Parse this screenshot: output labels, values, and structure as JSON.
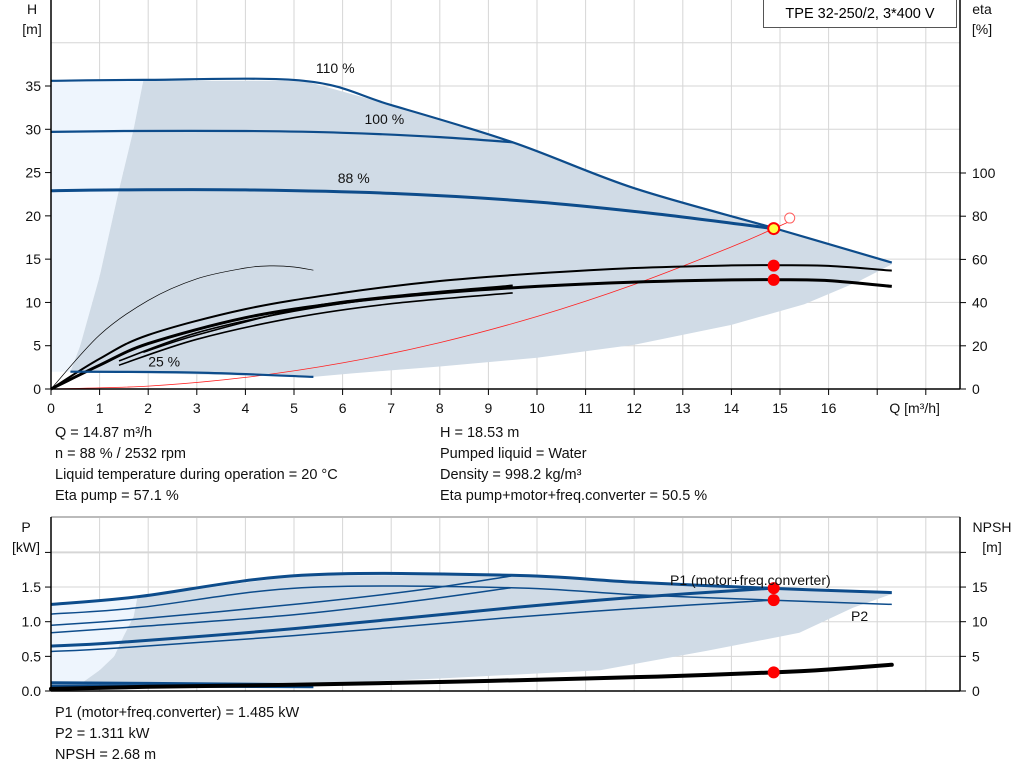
{
  "chart_data": [
    {
      "type": "line",
      "title": "TPE 32-250/2, 3*400 V",
      "ylabel": "H",
      "ylabel_unit": "[m]",
      "y2label": "eta",
      "y2label_unit": "[%]",
      "xlabel": "Q [m³/h]",
      "xlim": [
        0,
        18.7
      ],
      "ylim": [
        0,
        45
      ],
      "y2lim": [
        0,
        180
      ],
      "xticks": [
        "0",
        "1",
        "2",
        "3",
        "4",
        "5",
        "6",
        "7",
        "8",
        "9",
        "10",
        "11",
        "12",
        "13",
        "14",
        "15",
        "16"
      ],
      "yticks": [
        "0",
        "5",
        "10",
        "15",
        "20",
        "25",
        "30",
        "35"
      ],
      "y2ticks": [
        "0",
        "20",
        "40",
        "60",
        "80",
        "100"
      ],
      "grid": true,
      "colors": {
        "curve": "#0d4c8b",
        "envelope": "#d0dbe6",
        "envelope_light": "#eef5fd",
        "system": "#ff2020",
        "operating_point": "#ff0000",
        "duty_fill": "#ffff40"
      },
      "envelope": {
        "upper": [
          [
            1.9,
            35.6
          ],
          [
            5.2,
            35.6
          ],
          [
            7,
            32.8
          ],
          [
            9.5,
            28.5
          ],
          [
            12,
            23.2
          ],
          [
            14.87,
            18.6
          ],
          [
            17.3,
            14.6
          ]
        ],
        "lower": [
          [
            17.3,
            14.4
          ],
          [
            16.6,
            12.4
          ],
          [
            15.5,
            9.8
          ],
          [
            14,
            7.4
          ],
          [
            12,
            5.1
          ],
          [
            10,
            3.6
          ],
          [
            8,
            2.6
          ],
          [
            6.2,
            1.8
          ],
          [
            5.4,
            1.4
          ]
        ],
        "left": [
          [
            0.4,
            2.0
          ],
          [
            0.6,
            5
          ],
          [
            1.0,
            13
          ],
          [
            1.4,
            23
          ],
          [
            1.7,
            30
          ],
          [
            1.9,
            35.6
          ]
        ]
      },
      "head_curves": [
        {
          "name": "110 %",
          "points": [
            [
              0,
              35.6
            ],
            [
              1.9,
              35.7
            ],
            [
              5.2,
              35.6
            ],
            [
              7,
              32.8
            ],
            [
              9.5,
              28.5
            ],
            [
              12,
              23.2
            ],
            [
              14.87,
              18.6
            ],
            [
              17.3,
              14.6
            ]
          ]
        },
        {
          "name": "100 %",
          "points": [
            [
              0,
              29.7
            ],
            [
              1.5,
              29.8
            ],
            [
              4,
              29.8
            ],
            [
              6,
              29.6
            ],
            [
              8,
              29.1
            ],
            [
              9.5,
              28.5
            ]
          ]
        },
        {
          "name": "88 %",
          "points": [
            [
              0,
              22.9
            ],
            [
              1.4,
              23.0
            ],
            [
              4,
              23.0
            ],
            [
              7,
              22.6
            ],
            [
              10,
              21.6
            ],
            [
              12.5,
              20.2
            ],
            [
              14.87,
              18.53
            ]
          ]
        },
        {
          "name": "25 %",
          "points": [
            [
              0.4,
              2.0
            ],
            [
              3,
              1.9
            ],
            [
              5.4,
              1.4
            ]
          ]
        }
      ],
      "eta_curves": [
        {
          "id": "eta-pump",
          "points": [
            [
              0,
              0
            ],
            [
              1,
              14
            ],
            [
              2,
              25
            ],
            [
              4,
              37
            ],
            [
              6,
              44.5
            ],
            [
              8,
              50
            ],
            [
              10,
              53.5
            ],
            [
              12,
              56
            ],
            [
              14,
              57.2
            ],
            [
              15,
              57.3
            ],
            [
              16,
              57
            ],
            [
              17.3,
              54.8
            ]
          ]
        },
        {
          "id": "eta-total",
          "points": [
            [
              0,
              0
            ],
            [
              1,
              11
            ],
            [
              2,
              21
            ],
            [
              4,
              33
            ],
            [
              6,
              40
            ],
            [
              8,
              44.5
            ],
            [
              10,
              47.5
            ],
            [
              12,
              49.5
            ],
            [
              14,
              50.5
            ],
            [
              15,
              50.6
            ],
            [
              16,
              50.2
            ],
            [
              17.3,
              47.5
            ]
          ]
        },
        {
          "id": "eta-pump-100",
          "points": [
            [
              1.4,
              13
            ],
            [
              3,
              26
            ],
            [
              5,
              36
            ],
            [
              7,
              42.5
            ],
            [
              9.5,
              47.5
            ]
          ]
        },
        {
          "id": "eta-total-100",
          "points": [
            [
              1.4,
              11
            ],
            [
              3,
              23
            ],
            [
              5,
              33
            ],
            [
              7,
              39.5
            ],
            [
              9.5,
              44.5
            ]
          ]
        },
        {
          "id": "eta-pump-110",
          "points": [
            [
              1.9,
              17
            ],
            [
              3,
              25
            ],
            [
              5.2,
              37.5
            ],
            [
              7,
              43
            ],
            [
              9.5,
              48
            ]
          ]
        },
        {
          "id": "eta-pump-25",
          "points": [
            [
              0,
              0
            ],
            [
              1,
              25
            ],
            [
              2,
              41
            ],
            [
              3,
              51
            ],
            [
              4,
              56
            ],
            [
              4.5,
              57
            ],
            [
              5,
              56.5
            ],
            [
              5.4,
              55
            ]
          ]
        }
      ],
      "system_curve": {
        "points": [
          [
            0,
            0
          ],
          [
            2,
            0.34
          ],
          [
            4,
            1.34
          ],
          [
            6,
            3.02
          ],
          [
            8,
            5.36
          ],
          [
            10,
            8.38
          ],
          [
            12,
            12.07
          ],
          [
            14,
            16.42
          ],
          [
            14.87,
            18.53
          ],
          [
            15.2,
            19.36
          ]
        ]
      },
      "markers": [
        {
          "label": "duty-point",
          "x": 14.87,
          "y": 18.53,
          "axis": "H"
        },
        {
          "label": "eta-pump-point",
          "x": 14.87,
          "y": 57.1,
          "axis": "eta"
        },
        {
          "label": "eta-total-point",
          "x": 14.87,
          "y": 50.5,
          "axis": "eta"
        }
      ]
    },
    {
      "type": "line",
      "ylabel": "P",
      "ylabel_unit": "[kW]",
      "y2label": "NPSH",
      "y2label_unit": "[m]",
      "xlim": [
        0,
        18.7
      ],
      "ylim": [
        0,
        2.5
      ],
      "y2lim": [
        0,
        25
      ],
      "yticks": [
        "0.0",
        "0.5",
        "1.0",
        "1.5"
      ],
      "y2ticks": [
        "0",
        "5",
        "10",
        "15"
      ],
      "grid": true,
      "envelope": {
        "upper": [
          [
            1.78,
            1.36
          ],
          [
            5.16,
            1.67
          ],
          [
            9.47,
            1.67
          ],
          [
            12,
            1.57
          ],
          [
            14.87,
            1.48
          ],
          [
            17.3,
            1.42
          ]
        ],
        "lower": [
          [
            17.3,
            1.4
          ],
          [
            16.5,
            1.2
          ],
          [
            15.4,
            0.84
          ],
          [
            13.5,
            0.58
          ],
          [
            11.3,
            0.3
          ],
          [
            8,
            0.18
          ],
          [
            5.5,
            0.11
          ],
          [
            1,
            0.12
          ]
        ],
        "left": [
          [
            0.6,
            0.1
          ],
          [
            1.0,
            0.3
          ],
          [
            1.3,
            0.5
          ],
          [
            1.5,
            0.8
          ],
          [
            1.7,
            1.07
          ],
          [
            1.78,
            1.36
          ]
        ]
      },
      "power_curves": [
        {
          "id": "p1-110",
          "points": [
            [
              0,
              1.25
            ],
            [
              1.78,
              1.36
            ],
            [
              5.16,
              1.67
            ],
            [
              9.47,
              1.67
            ],
            [
              12,
              1.57
            ],
            [
              14.87,
              1.48
            ],
            [
              17.3,
              1.42
            ]
          ]
        },
        {
          "id": "p2-110",
          "points": [
            [
              0,
              1.11
            ],
            [
              1.78,
              1.2
            ],
            [
              5.16,
              1.49
            ],
            [
              9.47,
              1.49
            ],
            [
              12,
              1.39
            ],
            [
              14.87,
              1.31
            ],
            [
              17.3,
              1.25
            ]
          ]
        },
        {
          "id": "p1-100",
          "points": [
            [
              0,
              0.95
            ],
            [
              1.65,
              1.03
            ],
            [
              5,
              1.25
            ],
            [
              7.5,
              1.45
            ],
            [
              9.47,
              1.66
            ]
          ]
        },
        {
          "id": "p2-100",
          "points": [
            [
              0,
              0.84
            ],
            [
              2,
              0.94
            ],
            [
              5,
              1.1
            ],
            [
              7.5,
              1.3
            ],
            [
              9.47,
              1.49
            ]
          ]
        },
        {
          "id": "p1-88",
          "points": [
            [
              0,
              0.65
            ],
            [
              1.38,
              0.7
            ],
            [
              5,
              0.9
            ],
            [
              9.47,
              1.2
            ],
            [
              12,
              1.35
            ],
            [
              14.87,
              1.485
            ]
          ]
        },
        {
          "id": "p2-88",
          "points": [
            [
              0,
              0.57
            ],
            [
              1.38,
              0.62
            ],
            [
              5,
              0.8
            ],
            [
              9.47,
              1.06
            ],
            [
              12,
              1.19
            ],
            [
              14.87,
              1.311
            ]
          ]
        },
        {
          "id": "p1-25",
          "points": [
            [
              0,
              0.12
            ],
            [
              2,
              0.11
            ],
            [
              5.4,
              0.09
            ]
          ]
        },
        {
          "id": "p2-25",
          "points": [
            [
              0,
              0.07
            ],
            [
              2,
              0.07
            ],
            [
              5.4,
              0.06
            ]
          ]
        }
      ],
      "npsh_curve": {
        "points": [
          [
            0,
            0.3
          ],
          [
            2,
            0.6
          ],
          [
            5,
            0.9
          ],
          [
            8,
            1.3
          ],
          [
            11,
            1.8
          ],
          [
            13,
            2.2
          ],
          [
            14.87,
            2.68
          ],
          [
            16,
            3.1
          ],
          [
            17.3,
            3.8
          ]
        ]
      },
      "curve_labels": [
        "P1 (motor+freq.converter)",
        "P2"
      ],
      "markers": [
        {
          "label": "p1-point",
          "x": 14.87,
          "y": 1.485,
          "axis": "P"
        },
        {
          "label": "p2-point",
          "x": 14.87,
          "y": 1.311,
          "axis": "P"
        },
        {
          "label": "npsh-point",
          "x": 14.87,
          "y": 2.68,
          "axis": "NPSH"
        }
      ]
    }
  ],
  "readouts": {
    "q": "Q = 14.87 m³/h",
    "n": "n = 88 % / 2532 rpm",
    "temp": "Liquid temperature during operation = 20 °C",
    "eta_pump": "Eta pump = 57.1 %",
    "h": "H = 18.53 m",
    "liquid": "Pumped liquid = Water",
    "density": "Density = 998.2 kg/m³",
    "eta_total": "Eta pump+motor+freq.converter = 50.5 %",
    "p1": "P1 (motor+freq.converter) = 1.485 kW",
    "p2": "P2 = 1.311 kW",
    "npsh": "NPSH = 2.68 m"
  }
}
